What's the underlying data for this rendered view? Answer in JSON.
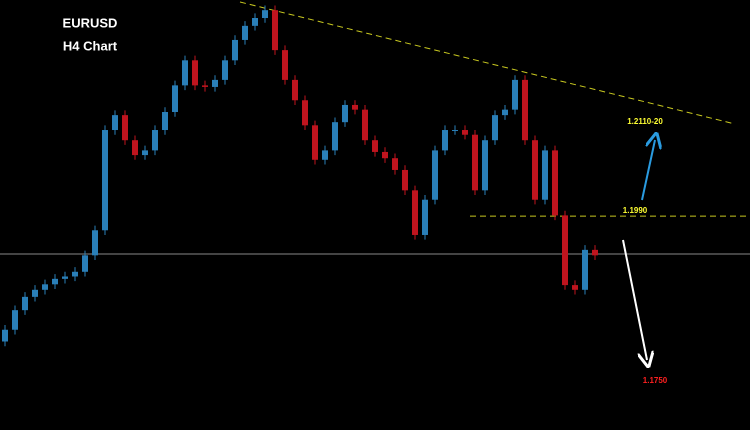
{
  "chart_data": {
    "type": "candlestick",
    "title": "EURUSD",
    "subtitle": "H4 Chart",
    "up_color": "#2a7fb8",
    "down_color": "#c0141e",
    "ylim": [
      1.1717,
      1.2266
    ],
    "annotations": [
      {
        "label": "1.2110-20",
        "color": "#ffff33"
      },
      {
        "value": 1.199,
        "label": "1.1990",
        "color": "#ffff33"
      },
      {
        "label": "1.1750",
        "color": "#ff2020"
      }
    ],
    "open": [
      1.183,
      1.1845,
      1.187,
      1.1887,
      1.1896,
      1.1903,
      1.191,
      1.1913,
      1.1919,
      1.194,
      1.1972,
      1.21,
      1.2119,
      1.2087,
      1.2068,
      1.2074,
      1.21,
      1.2123,
      1.2157,
      1.2189,
      1.2157,
      1.2155,
      1.2164,
      1.2189,
      1.2215,
      1.2233,
      1.2243,
      1.2253,
      1.2202,
      1.2164,
      1.2138,
      1.2106,
      1.2062,
      1.2074,
      1.211,
      1.2132,
      1.2126,
      1.2087,
      1.2072,
      1.2064,
      1.2049,
      1.2023,
      1.1966,
      1.2011,
      1.2074,
      1.21,
      1.21,
      1.2094,
      1.2023,
      1.2087,
      1.2119,
      1.2126,
      1.2164,
      1.2087,
      1.2011,
      1.2074,
      1.1991,
      1.1902,
      1.1896,
      1.1947
    ],
    "high": [
      1.1851,
      1.1876,
      1.1893,
      1.1902,
      1.1909,
      1.1916,
      1.1919,
      1.1925,
      1.1946,
      1.1978,
      1.2106,
      1.2125,
      1.2125,
      1.2093,
      1.208,
      1.2106,
      1.2129,
      1.2163,
      1.2195,
      1.2195,
      1.2163,
      1.217,
      1.2195,
      1.2221,
      1.2239,
      1.2249,
      1.2259,
      1.2259,
      1.2208,
      1.217,
      1.2144,
      1.2112,
      1.208,
      1.2116,
      1.2138,
      1.2138,
      1.2132,
      1.2093,
      1.2078,
      1.207,
      1.2055,
      1.2029,
      1.2017,
      1.208,
      1.2106,
      1.2106,
      1.2106,
      1.21,
      1.2093,
      1.2125,
      1.2132,
      1.217,
      1.217,
      1.2093,
      1.208,
      1.208,
      1.1997,
      1.1908,
      1.1953,
      1.1953
    ],
    "low": [
      1.1824,
      1.1839,
      1.1864,
      1.1881,
      1.189,
      1.1897,
      1.1904,
      1.1907,
      1.1913,
      1.1934,
      1.1966,
      1.2094,
      1.2081,
      1.2062,
      1.2062,
      1.2068,
      1.2094,
      1.2117,
      1.2151,
      1.2151,
      1.2149,
      1.2149,
      1.2158,
      1.2183,
      1.2209,
      1.2227,
      1.2237,
      1.2196,
      1.2158,
      1.2132,
      1.21,
      1.2056,
      1.2056,
      1.2068,
      1.2104,
      1.212,
      1.2081,
      1.2066,
      1.2058,
      1.2043,
      1.2017,
      1.196,
      1.196,
      1.2005,
      1.2068,
      1.2094,
      1.2088,
      1.2017,
      1.2017,
      1.2081,
      1.2113,
      1.212,
      1.2081,
      1.2005,
      1.2005,
      1.1985,
      1.1896,
      1.189,
      1.189,
      1.1934
    ],
    "close": [
      1.1845,
      1.187,
      1.1887,
      1.1896,
      1.1903,
      1.191,
      1.1913,
      1.1919,
      1.194,
      1.1972,
      1.21,
      1.2119,
      1.2087,
      1.2068,
      1.2074,
      1.21,
      1.2123,
      1.2157,
      1.2189,
      1.2157,
      1.2155,
      1.2164,
      1.2189,
      1.2215,
      1.2233,
      1.2243,
      1.2253,
      1.2202,
      1.2164,
      1.2138,
      1.2106,
      1.2062,
      1.2074,
      1.211,
      1.2132,
      1.2126,
      1.2087,
      1.2072,
      1.2064,
      1.2049,
      1.2023,
      1.1966,
      1.2011,
      1.2074,
      1.21,
      1.21,
      1.2094,
      1.2023,
      1.2087,
      1.2119,
      1.2126,
      1.2164,
      1.2087,
      1.2011,
      1.2074,
      1.1991,
      1.1902,
      1.1896,
      1.1947,
      1.194
    ]
  }
}
